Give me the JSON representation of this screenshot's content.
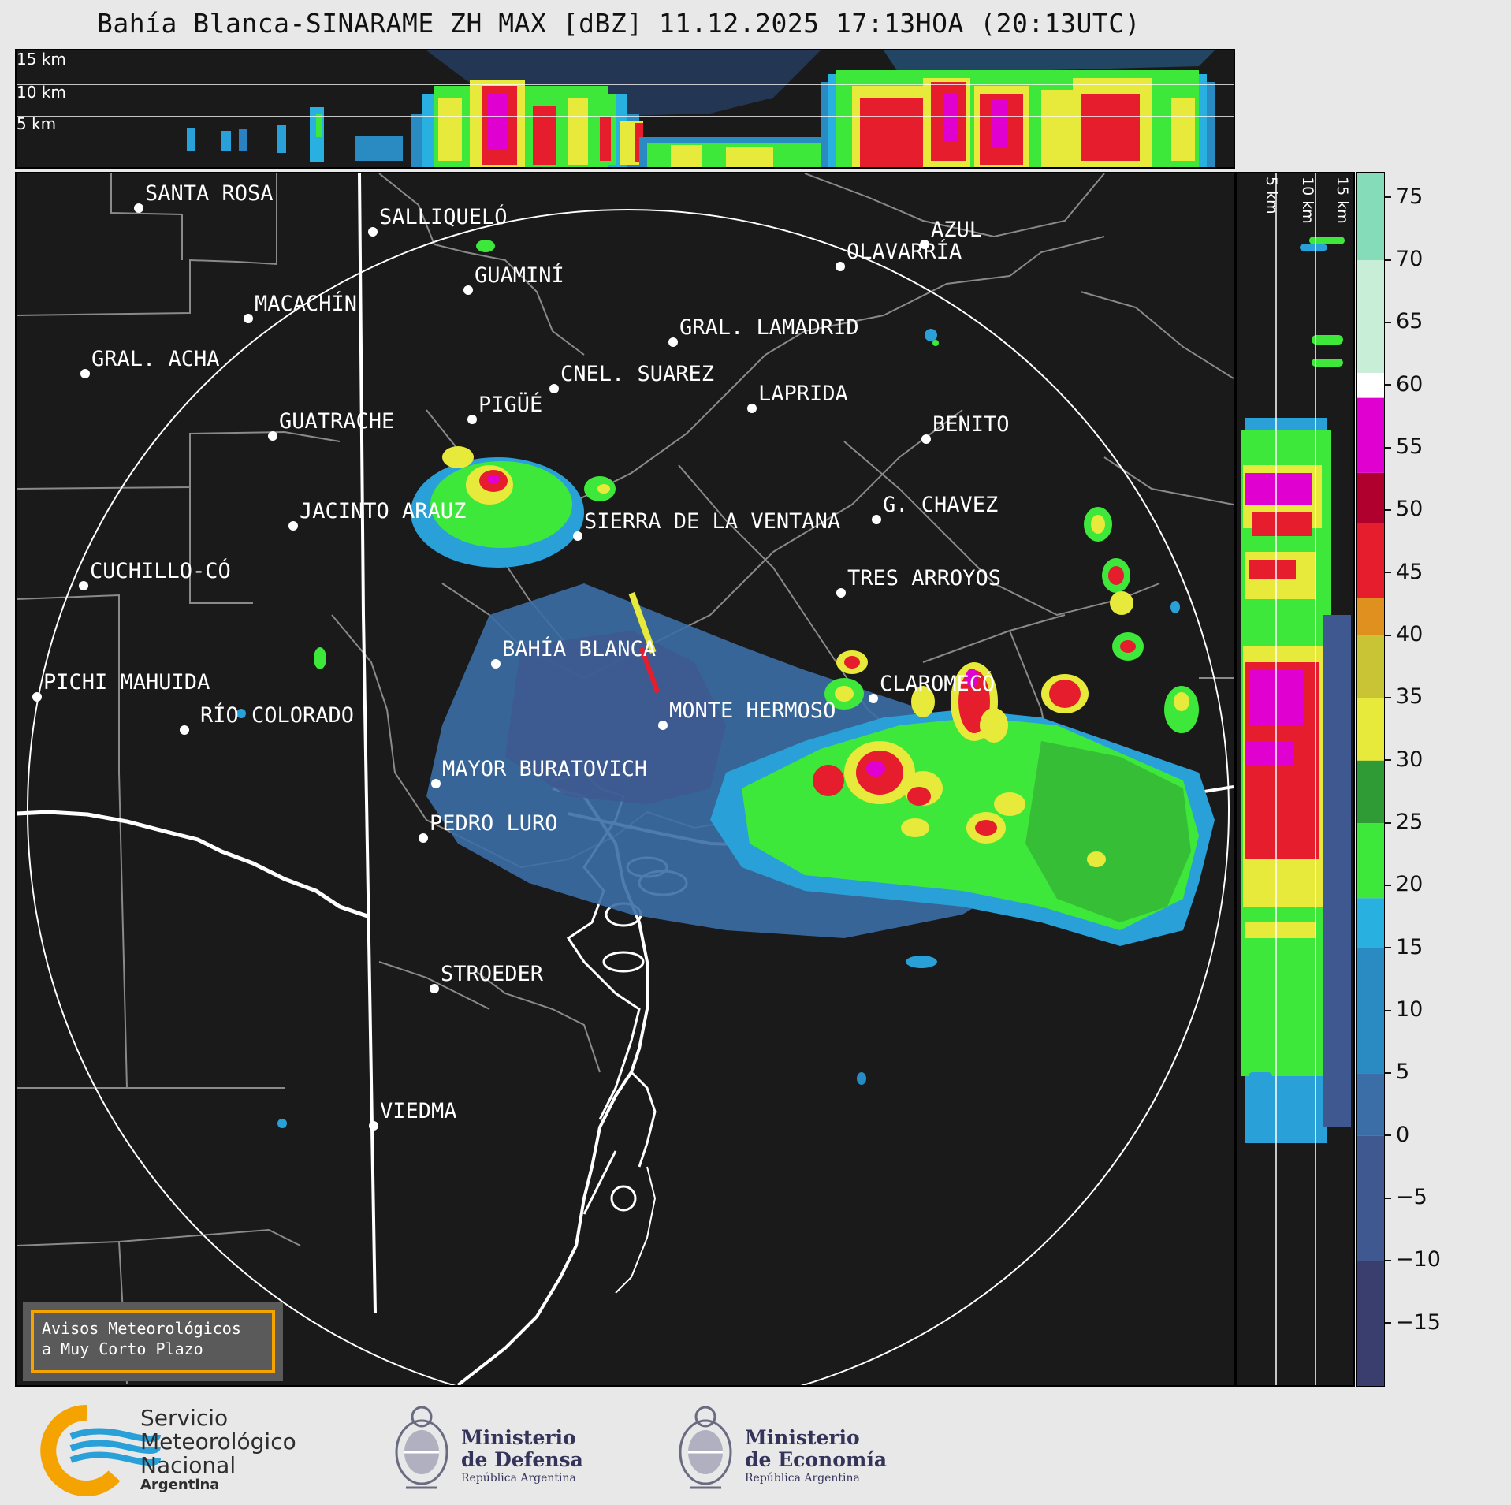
{
  "title": "Bahía Blanca-SINARAME ZH MAX [dBZ] 11.12.2025 17:13HOA (20:13UTC)",
  "top_panel": {
    "height_labels": [
      "15 km",
      "10 km",
      "5 km"
    ]
  },
  "side_panel": {
    "height_labels": [
      "5 km",
      "10 km",
      "15 km"
    ]
  },
  "colorbar": {
    "unit": "dBZ",
    "ticks": [
      "75",
      "70",
      "65",
      "60",
      "55",
      "50",
      "45",
      "40",
      "35",
      "30",
      "25",
      "20",
      "15",
      "10",
      "5",
      "0",
      "−5",
      "−10",
      "−15"
    ],
    "range": [
      -20,
      77
    ],
    "colors": {
      "n20": "#3a3e6e",
      "n10": "#3f5890",
      "n0": "#3b6ea6",
      "p5": "#2a8bc2",
      "p15": "#28b0e0",
      "p20": "#3ee83a",
      "p25": "#2f9b35",
      "p30": "#e7ea3a",
      "p35": "#c9c436",
      "p40": "#e0901e",
      "p45": "#e51d2c",
      "p50": "#b0002e",
      "p55": "#e000d0",
      "p60": "#ffffff",
      "p65": "#c8eed8",
      "p75": "#85dcb8"
    }
  },
  "map": {
    "radar_site": "BAHÍA BLANCA",
    "cities": [
      {
        "name": "SANTA ROSA"
      },
      {
        "name": "SALLIQUELÓ"
      },
      {
        "name": "AZUL"
      },
      {
        "name": "OLAVARRÍA"
      },
      {
        "name": "GUAMINÍ"
      },
      {
        "name": "MACACHÍN"
      },
      {
        "name": "GRAL. LAMADRID"
      },
      {
        "name": "GRAL. ACHA"
      },
      {
        "name": "CNEL. SUAREZ"
      },
      {
        "name": "LAPRIDA"
      },
      {
        "name": "PIGÜÉ"
      },
      {
        "name": "GUATRACHE"
      },
      {
        "name": "BENITO"
      },
      {
        "name": "G. CHAVEZ"
      },
      {
        "name": "JACINTO ARAUZ"
      },
      {
        "name": "SIERRA DE LA VENTANA"
      },
      {
        "name": "CUCHILLO-CÓ"
      },
      {
        "name": "TRES ARROYOS"
      },
      {
        "name": "BAHÍA BLANCA"
      },
      {
        "name": "CLAROMECÓ"
      },
      {
        "name": "PICHI MAHUIDA"
      },
      {
        "name": "RÍO COLORADO"
      },
      {
        "name": "MONTE HERMOSO"
      },
      {
        "name": "MAYOR BURATOVICH"
      },
      {
        "name": "PEDRO LURO"
      },
      {
        "name": "STROEDER"
      },
      {
        "name": "VIEDMA"
      }
    ],
    "warning_box": {
      "line1": "Avisos Meteorológicos",
      "line2": "a Muy Corto Plazo",
      "border_color": "#f5a300"
    }
  },
  "logos": {
    "smn": {
      "line1": "Servicio",
      "line2": "Meteorológico",
      "line3": "Nacional",
      "line4": "Argentina"
    },
    "defensa": {
      "line1": "Ministerio",
      "line2": "de Defensa",
      "line3": "República Argentina"
    },
    "economia": {
      "line1": "Ministerio",
      "line2": "de Economía",
      "line3": "República Argentina"
    }
  }
}
